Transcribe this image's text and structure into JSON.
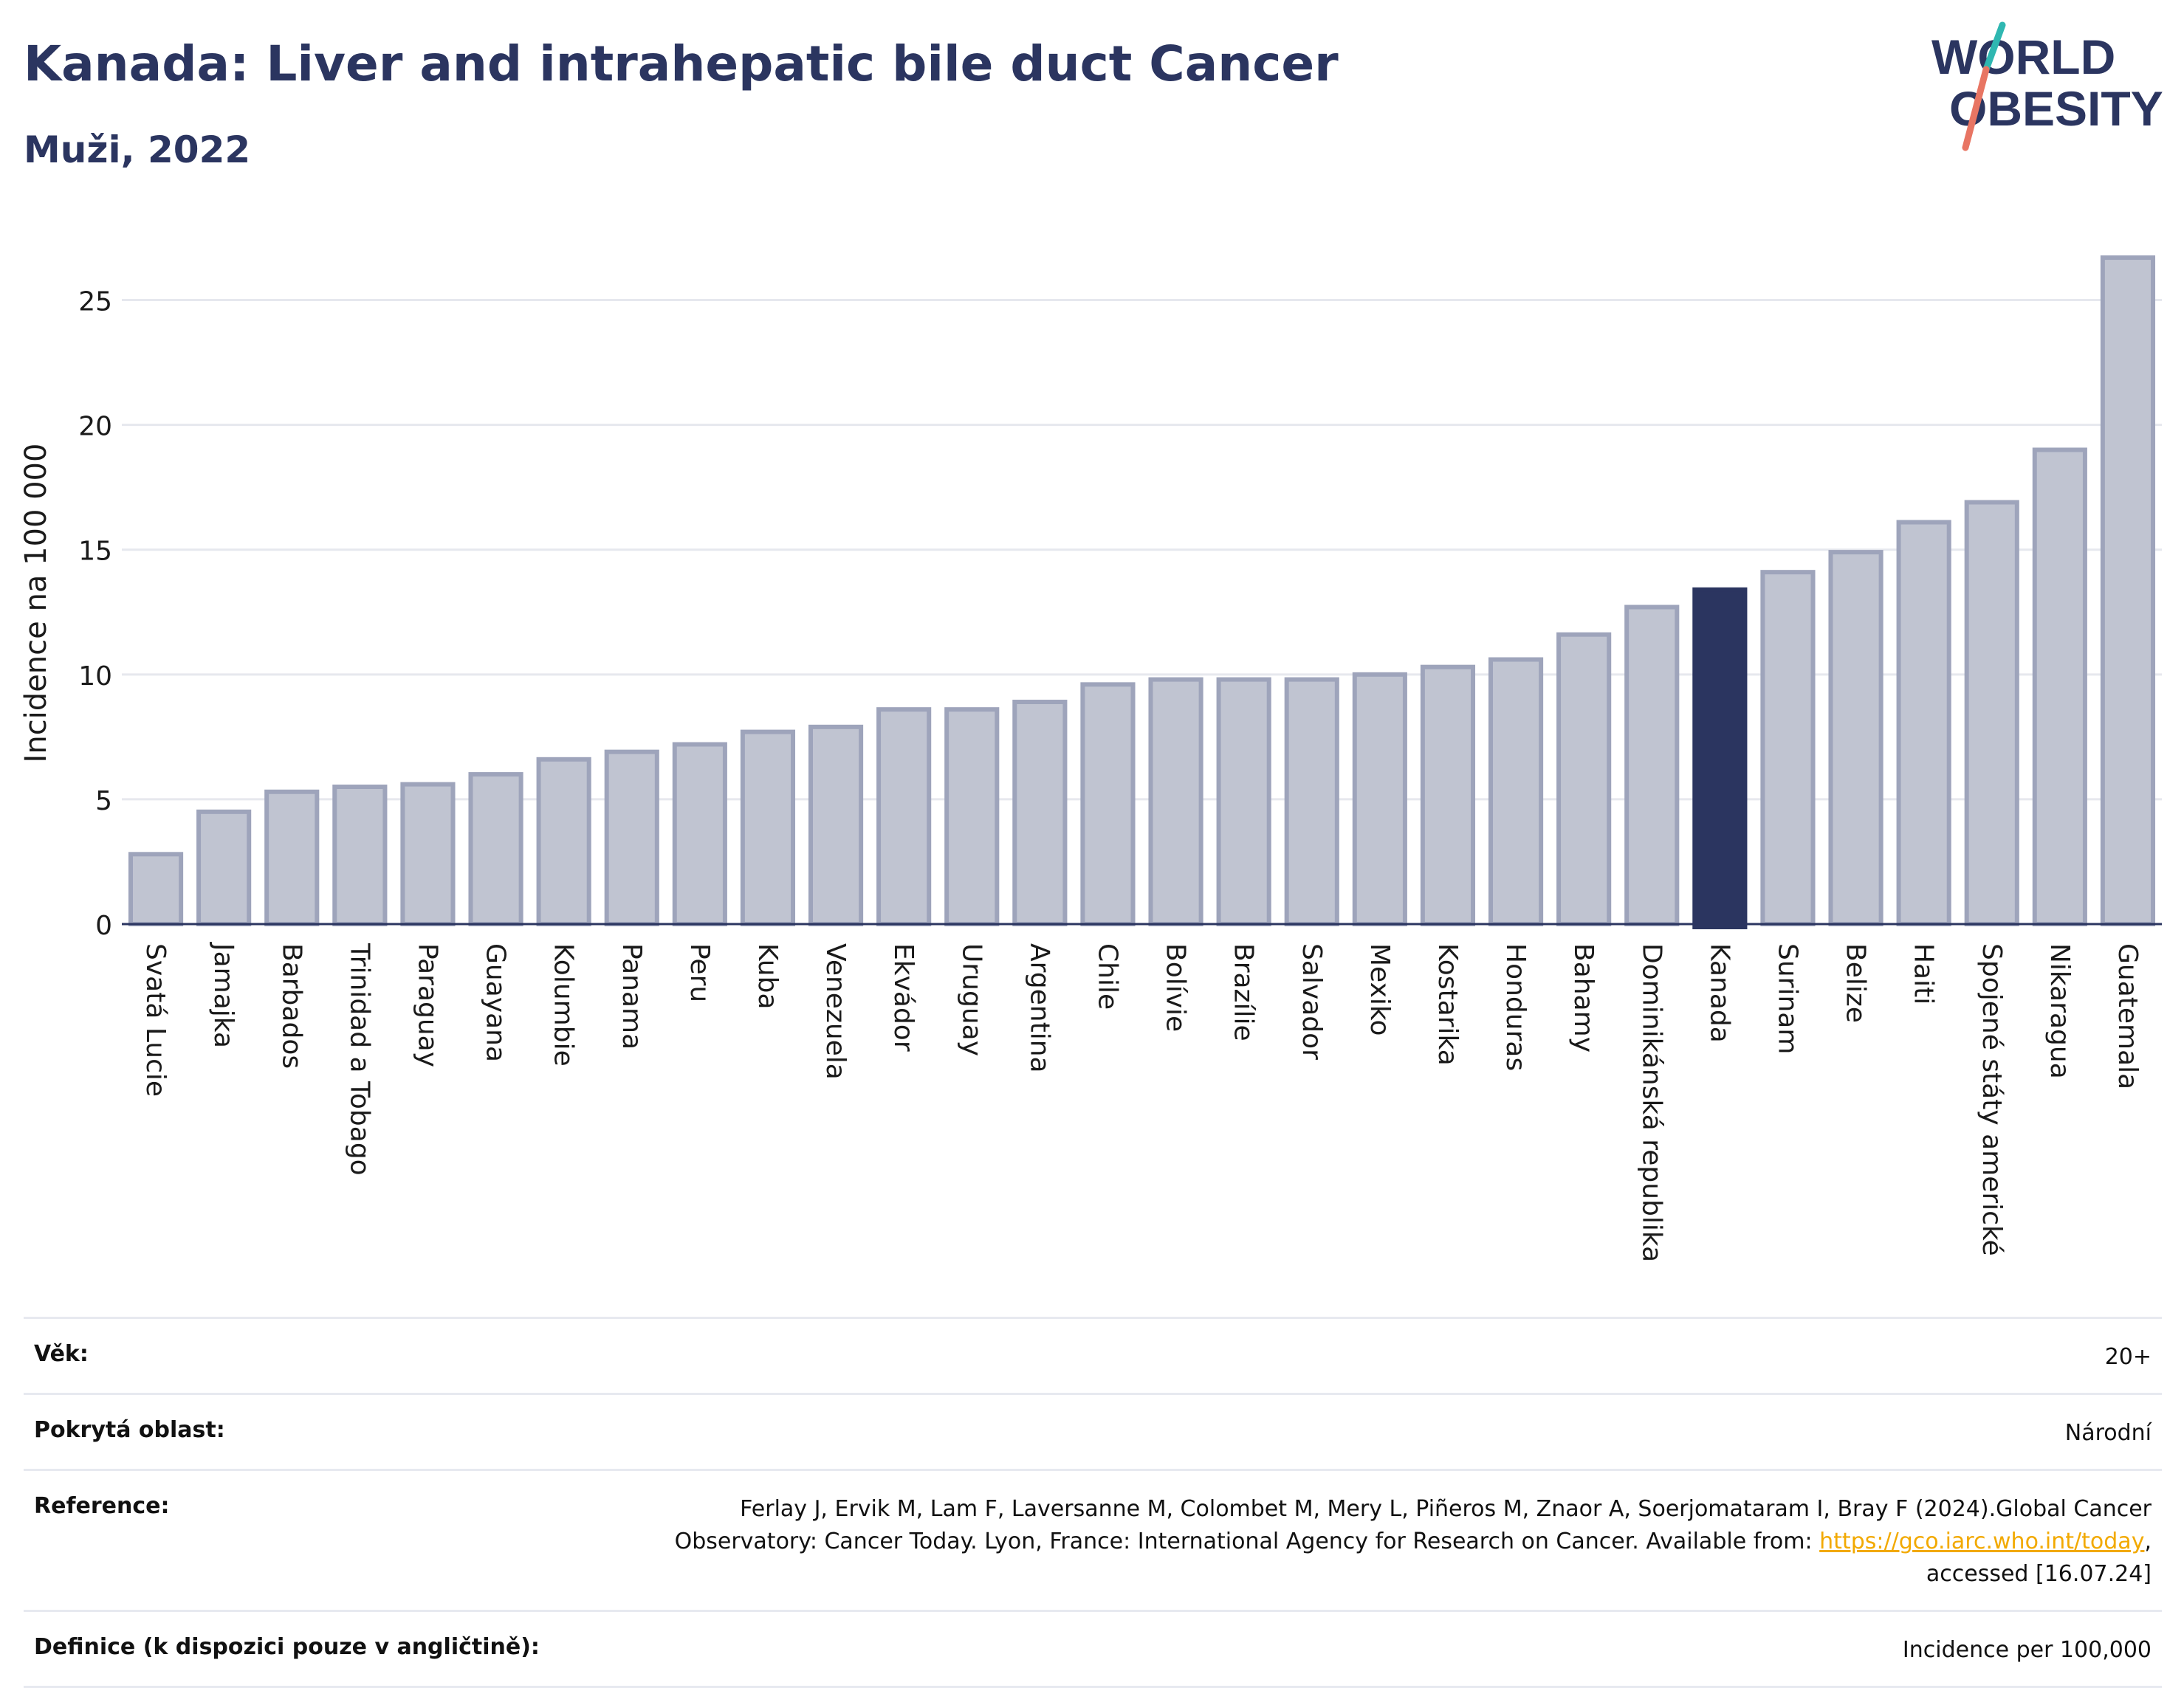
{
  "header": {
    "title": "Kanada: Liver and intrahepatic bile duct Cancer",
    "subtitle": "Muži, 2022"
  },
  "logo": {
    "line1": "WORLD",
    "line2": "OBESITY"
  },
  "colors": {
    "bar": "#c0c4d1",
    "bar_stroke": "#9ea4bb",
    "highlight": "#2b3560",
    "grid": "#e6e8ee",
    "brand_teal": "#2fb7b1",
    "brand_coral": "#e87563"
  },
  "chart_data": {
    "type": "bar",
    "title": "Kanada: Liver and intrahepatic bile duct Cancer",
    "subtitle": "Muži, 2022",
    "xlabel": "",
    "ylabel": "Incidence na 100 000",
    "ylim": [
      0,
      27.5
    ],
    "yticks": [
      0,
      5,
      10,
      15,
      20,
      25
    ],
    "grid": true,
    "highlight": "Kanada",
    "categories": [
      "Svatá Lucie",
      "Jamajka",
      "Barbados",
      "Trinidad a Tobago",
      "Paraguay",
      "Guayana",
      "Kolumbie",
      "Panama",
      "Peru",
      "Kuba",
      "Venezuela",
      "Ekvádor",
      "Uruguay",
      "Argentina",
      "Chile",
      "Bolívie",
      "Brazílie",
      "Salvador",
      "Mexiko",
      "Kostarika",
      "Honduras",
      "Bahamy",
      "Dominikánská republika",
      "Kanada",
      "Surinam",
      "Belize",
      "Haiti",
      "Spojené státy americké",
      "Nikaragua",
      "Guatemala"
    ],
    "values": [
      2.8,
      4.5,
      5.3,
      5.5,
      5.6,
      6.0,
      6.6,
      6.9,
      7.2,
      7.7,
      7.9,
      8.6,
      8.6,
      8.9,
      9.6,
      9.8,
      9.8,
      9.8,
      10.0,
      10.3,
      10.6,
      11.6,
      12.7,
      13.4,
      14.1,
      14.9,
      16.1,
      16.9,
      19.0,
      26.7
    ]
  },
  "info": {
    "rows": [
      {
        "label": "Věk:",
        "value": "20+"
      },
      {
        "label": "Pokrytá oblast:",
        "value": "Národní"
      },
      {
        "label": "Definice (k dispozici pouze v angličtině):",
        "value": "Incidence per 100,000"
      }
    ],
    "reference": {
      "label": "Reference:",
      "text1": "Ferlay J, Ervik M, Lam F, Laversanne M, Colombet M, Mery L, Piñeros M, Znaor A, Soerjomataram I, Bray F (2024).Global Cancer",
      "text2": "Observatory: Cancer Today. Lyon, France: International Agency for Research on Cancer. Available from: ",
      "link": "https://gco.iarc.who.int/today",
      "text3": ",",
      "text4": "accessed [16.07.24]"
    }
  }
}
